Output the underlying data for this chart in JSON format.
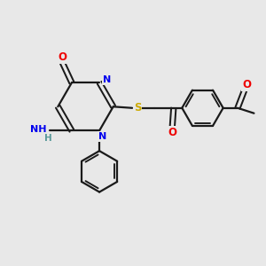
{
  "background_color": "#e8e8e8",
  "bond_color": "#1a1a1a",
  "atom_colors": {
    "N": "#0000ee",
    "O": "#ee0000",
    "S": "#ccaa00",
    "C": "#1a1a1a",
    "H": "#5a9a9a"
  },
  "figsize": [
    3.0,
    3.0
  ],
  "dpi": 100
}
